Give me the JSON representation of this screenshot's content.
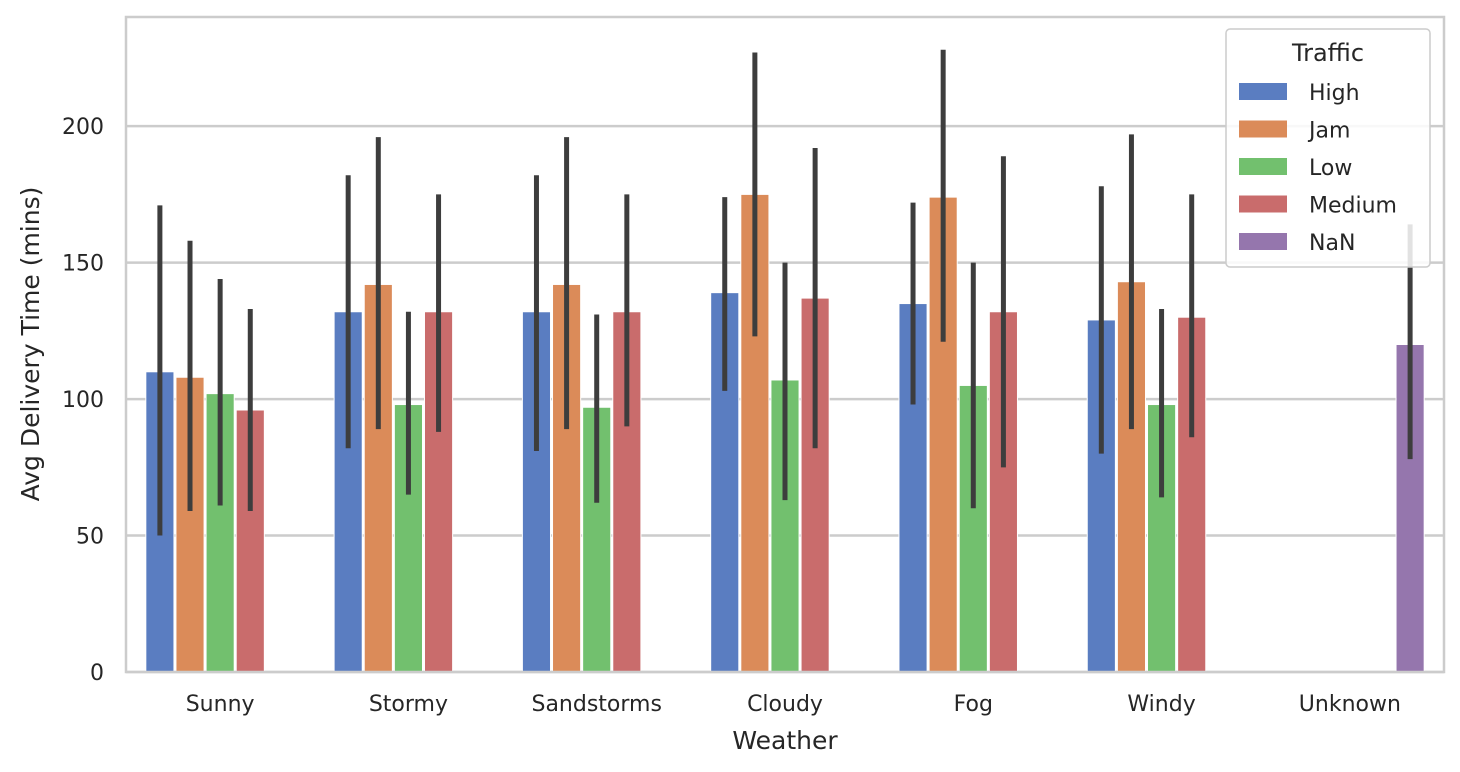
{
  "chart_data": {
    "type": "bar",
    "xlabel": "Weather",
    "ylabel": "Avg Delivery Time (mins)",
    "ylim": [
      0,
      240
    ],
    "yticks": [
      0,
      50,
      100,
      150,
      200
    ],
    "grid": "horizontal",
    "legend_placement": "top-right",
    "categories": [
      "Sunny",
      "Stormy",
      "Sandstorms",
      "Cloudy",
      "Fog",
      "Windy",
      "Unknown"
    ],
    "legend": {
      "title": "Traffic"
    },
    "series": [
      {
        "name": "High",
        "color": "#5a7dc1",
        "values": [
          110,
          132,
          132,
          139,
          135,
          129,
          null
        ],
        "ci_low": [
          50,
          82,
          81,
          103,
          98,
          80,
          null
        ],
        "ci_high": [
          171,
          182,
          182,
          174,
          172,
          178,
          null
        ]
      },
      {
        "name": "Jam",
        "color": "#db8b59",
        "values": [
          108,
          142,
          142,
          175,
          174,
          143,
          null
        ],
        "ci_low": [
          59,
          89,
          89,
          123,
          121,
          89,
          null
        ],
        "ci_high": [
          158,
          196,
          196,
          227,
          228,
          197,
          null
        ]
      },
      {
        "name": "Low",
        "color": "#72c06e",
        "values": [
          102,
          98,
          97,
          107,
          105,
          98,
          null
        ],
        "ci_low": [
          61,
          65,
          62,
          63,
          60,
          64,
          null
        ],
        "ci_high": [
          144,
          132,
          131,
          150,
          150,
          133,
          null
        ]
      },
      {
        "name": "Medium",
        "color": "#c96c6c",
        "values": [
          96,
          132,
          132,
          137,
          132,
          130,
          null
        ],
        "ci_low": [
          59,
          88,
          90,
          82,
          75,
          86,
          null
        ],
        "ci_high": [
          133,
          175,
          175,
          192,
          189,
          175,
          null
        ]
      },
      {
        "name": "NaN",
        "color": "#9576ad",
        "values": [
          null,
          null,
          null,
          null,
          null,
          null,
          120
        ],
        "ci_low": [
          null,
          null,
          null,
          null,
          null,
          null,
          78
        ],
        "ci_high": [
          null,
          null,
          null,
          null,
          null,
          null,
          164
        ]
      }
    ]
  }
}
